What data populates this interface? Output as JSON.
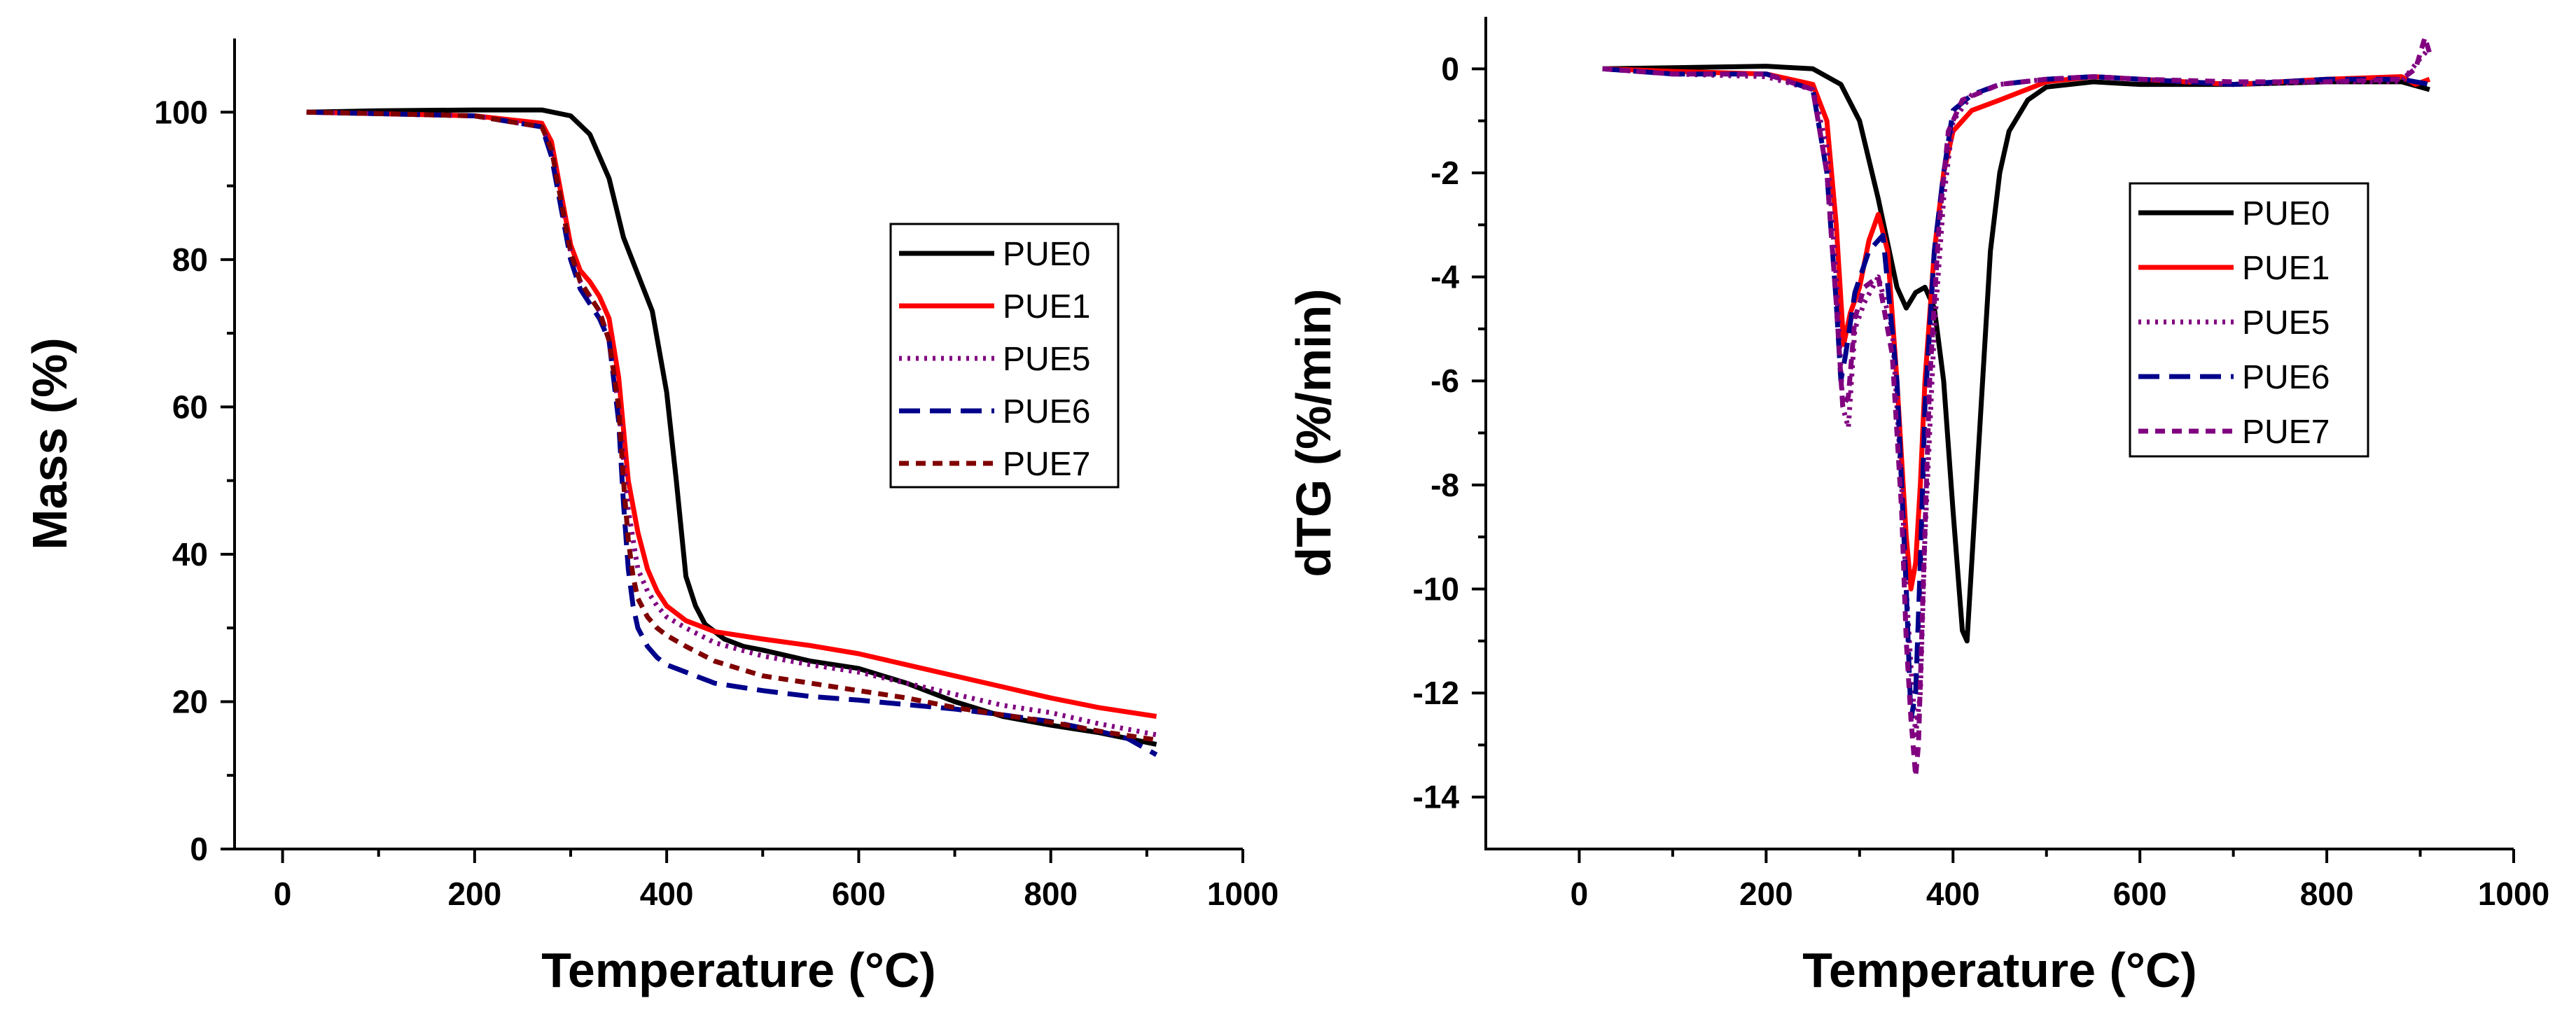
{
  "chart_data": [
    {
      "type": "line",
      "id": "tga",
      "xlabel": "Temperature (°C)",
      "ylabel": "Mass (%)",
      "xlim": [
        -50,
        1000
      ],
      "ylim": [
        0,
        110
      ],
      "xticks": [
        0,
        200,
        400,
        600,
        800,
        1000
      ],
      "yticks": [
        0,
        20,
        40,
        60,
        80,
        100
      ],
      "legend_position": "right-middle",
      "series": [
        {
          "name": "PUE0",
          "color": "#000000",
          "dash": "solid",
          "x": [
            25,
            100,
            200,
            270,
            300,
            320,
            340,
            355,
            370,
            385,
            400,
            410,
            420,
            430,
            440,
            460,
            480,
            500,
            550,
            600,
            650,
            700,
            750,
            800,
            850,
            910
          ],
          "y": [
            100,
            100.2,
            100.3,
            100.3,
            99.5,
            97,
            91,
            83,
            78,
            73,
            62,
            50,
            37,
            33,
            30.5,
            28.5,
            27.5,
            27,
            25.5,
            24.5,
            22.5,
            20,
            18,
            16.8,
            15.8,
            14.2
          ]
        },
        {
          "name": "PUE1",
          "color": "#ff0000",
          "dash": "solid",
          "x": [
            25,
            100,
            200,
            270,
            280,
            290,
            300,
            310,
            320,
            330,
            340,
            350,
            360,
            370,
            380,
            390,
            400,
            420,
            450,
            500,
            550,
            600,
            650,
            700,
            750,
            800,
            850,
            910
          ],
          "y": [
            100,
            99.8,
            99.5,
            98.5,
            96,
            89,
            82,
            78.5,
            77,
            75,
            72,
            64,
            50,
            43,
            38,
            35,
            33,
            31,
            29.5,
            28.5,
            27.6,
            26.5,
            25,
            23.5,
            22,
            20.5,
            19.2,
            18
          ]
        },
        {
          "name": "PUE5",
          "color": "#800080",
          "dash": "dotted",
          "x": [
            25,
            100,
            200,
            270,
            280,
            290,
            300,
            310,
            320,
            330,
            340,
            350,
            360,
            370,
            380,
            390,
            400,
            420,
            450,
            500,
            550,
            600,
            650,
            700,
            750,
            800,
            850,
            910
          ],
          "y": [
            100,
            99.8,
            99.5,
            98,
            95,
            88,
            81,
            77,
            75,
            73,
            69,
            60,
            46,
            38,
            35,
            33,
            31.5,
            30,
            28,
            26.2,
            25,
            24,
            22.5,
            21,
            19.5,
            18.5,
            17,
            15.5
          ]
        },
        {
          "name": "PUE6",
          "color": "#00008b",
          "dash": "dashed",
          "x": [
            25,
            100,
            200,
            270,
            280,
            290,
            300,
            310,
            320,
            330,
            340,
            350,
            355,
            360,
            365,
            370,
            380,
            390,
            400,
            420,
            450,
            500,
            550,
            600,
            650,
            700,
            750,
            800,
            850,
            880,
            910
          ],
          "y": [
            100,
            99.8,
            99.5,
            98,
            94,
            87,
            80,
            76,
            74,
            72,
            69,
            58,
            47,
            38,
            33,
            30,
            27.5,
            26,
            25,
            24,
            22.5,
            21.5,
            20.7,
            20.2,
            19.6,
            19,
            18.2,
            17.3,
            16,
            15,
            12.8
          ]
        },
        {
          "name": "PUE7",
          "color": "#800000",
          "dash": "shortdash",
          "x": [
            25,
            100,
            200,
            270,
            280,
            290,
            300,
            310,
            320,
            330,
            340,
            350,
            355,
            360,
            365,
            370,
            380,
            390,
            400,
            420,
            450,
            500,
            550,
            600,
            650,
            700,
            750,
            800,
            850,
            910
          ],
          "y": [
            100,
            99.8,
            99.5,
            98,
            95,
            88,
            81,
            77,
            75,
            73,
            69,
            60,
            50,
            42,
            37,
            34,
            31.5,
            30,
            29,
            27.5,
            25.5,
            23.5,
            22.5,
            21.5,
            20.5,
            19.2,
            18.2,
            17.2,
            16,
            14.8
          ]
        }
      ]
    },
    {
      "type": "line",
      "id": "dtg",
      "xlabel": "Temperature (°C)",
      "ylabel": "dTG (%/min)",
      "xlim": [
        -100,
        1000
      ],
      "ylim": [
        -15,
        1
      ],
      "xticks": [
        0,
        200,
        400,
        600,
        800,
        1000
      ],
      "yticks": [
        0,
        -2,
        -4,
        -6,
        -8,
        -10,
        -12,
        -14
      ],
      "legend_position": "right-middle",
      "series": [
        {
          "name": "PUE0",
          "color": "#000000",
          "dash": "solid",
          "x": [
            25,
            100,
            200,
            250,
            280,
            300,
            320,
            340,
            350,
            360,
            370,
            380,
            390,
            400,
            410,
            415,
            420,
            430,
            440,
            450,
            460,
            480,
            500,
            550,
            600,
            700,
            800,
            880,
            910
          ],
          "y": [
            0,
            0.02,
            0.05,
            0,
            -0.3,
            -1,
            -2.5,
            -4.2,
            -4.6,
            -4.3,
            -4.2,
            -4.6,
            -6,
            -8.5,
            -10.8,
            -11,
            -9.5,
            -6.5,
            -3.5,
            -2,
            -1.2,
            -0.6,
            -0.35,
            -0.25,
            -0.3,
            -0.3,
            -0.25,
            -0.25,
            -0.4
          ]
        },
        {
          "name": "PUE1",
          "color": "#ff0000",
          "dash": "solid",
          "x": [
            25,
            100,
            200,
            250,
            265,
            275,
            283,
            290,
            300,
            310,
            320,
            330,
            340,
            350,
            355,
            360,
            365,
            370,
            380,
            390,
            400,
            420,
            450,
            500,
            550,
            600,
            700,
            800,
            880,
            895,
            910
          ],
          "y": [
            0,
            -0.05,
            -0.1,
            -0.3,
            -1,
            -3,
            -5.3,
            -4.7,
            -4.2,
            -3.3,
            -2.8,
            -3.5,
            -6,
            -9,
            -10,
            -9.5,
            -8,
            -6,
            -3.5,
            -2,
            -1.2,
            -0.8,
            -0.6,
            -0.25,
            -0.15,
            -0.2,
            -0.3,
            -0.2,
            -0.15,
            -0.3,
            -0.2
          ]
        },
        {
          "name": "PUE5",
          "color": "#800080",
          "dash": "dotted",
          "x": [
            25,
            100,
            200,
            250,
            265,
            275,
            282,
            288,
            295,
            305,
            320,
            335,
            345,
            350,
            355,
            360,
            365,
            370,
            380,
            390,
            400,
            420,
            450,
            500,
            550,
            600,
            700,
            800,
            880,
            900,
            910
          ],
          "y": [
            0,
            -0.1,
            -0.15,
            -0.4,
            -1.5,
            -4,
            -6.5,
            -6.9,
            -5,
            -4.5,
            -4,
            -5,
            -8,
            -10,
            -11.5,
            -12.8,
            -12,
            -9,
            -5,
            -2.5,
            -1,
            -0.5,
            -0.3,
            -0.2,
            -0.15,
            -0.2,
            -0.3,
            -0.25,
            -0.25,
            0.2,
            0.4
          ]
        },
        {
          "name": "PUE6",
          "color": "#00008b",
          "dash": "dashed",
          "x": [
            25,
            100,
            200,
            250,
            265,
            275,
            280,
            285,
            295,
            310,
            325,
            340,
            350,
            355,
            360,
            365,
            370,
            380,
            390,
            400,
            420,
            450,
            500,
            550,
            600,
            700,
            800,
            880,
            910
          ],
          "y": [
            0,
            -0.1,
            -0.1,
            -0.4,
            -2,
            -4.5,
            -6,
            -5.5,
            -4.3,
            -3.5,
            -3.2,
            -6,
            -10,
            -12.5,
            -12,
            -9.5,
            -6.5,
            -3.5,
            -2,
            -0.8,
            -0.5,
            -0.3,
            -0.2,
            -0.15,
            -0.2,
            -0.3,
            -0.2,
            -0.2,
            -0.3
          ]
        },
        {
          "name": "PUE7",
          "color": "#800080",
          "dash": "shortdash",
          "x": [
            25,
            100,
            200,
            250,
            265,
            275,
            282,
            288,
            295,
            305,
            320,
            335,
            345,
            350,
            355,
            360,
            363,
            368,
            375,
            385,
            395,
            410,
            430,
            450,
            500,
            550,
            600,
            700,
            800,
            880,
            895,
            905,
            910
          ],
          "y": [
            0,
            -0.1,
            -0.1,
            -0.4,
            -2,
            -4.5,
            -6.5,
            -6.3,
            -4.8,
            -4.2,
            -4,
            -5.5,
            -8.5,
            -11,
            -12.5,
            -13.6,
            -13,
            -10,
            -6,
            -3,
            -1.2,
            -0.6,
            -0.45,
            -0.3,
            -0.2,
            -0.15,
            -0.2,
            -0.25,
            -0.25,
            -0.2,
            0,
            0.6,
            0.3
          ]
        }
      ]
    }
  ]
}
